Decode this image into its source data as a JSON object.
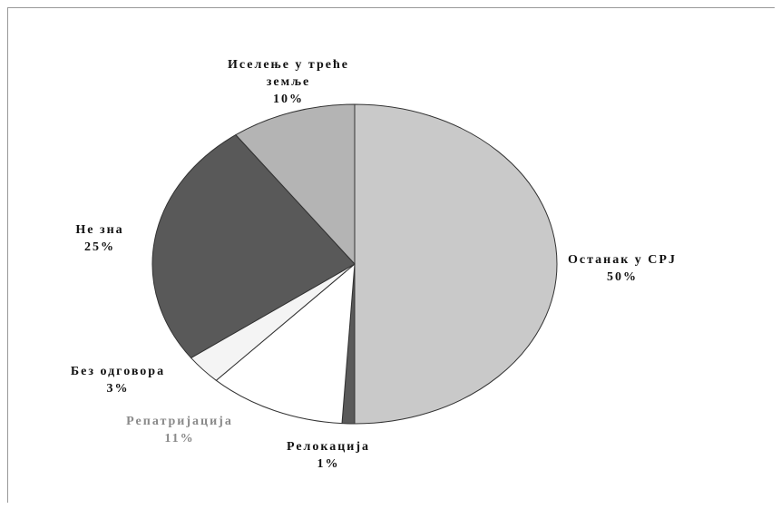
{
  "chart_data": {
    "type": "pie",
    "categories": [
      "Останак у СРЈ",
      "Релокација",
      "Репатријација",
      "Без одговора",
      "Не зна",
      "Иселење у треће земље"
    ],
    "values": [
      50,
      1,
      11,
      3,
      25,
      10
    ],
    "value_labels": [
      "50%",
      "1%",
      "11%",
      "3%",
      "25%",
      "10%"
    ],
    "colors": [
      "#c9c9c9",
      "#5a5a5a",
      "#ffffff",
      "#f4f4f4",
      "#595959",
      "#b4b4b4"
    ],
    "label_colors": [
      "#111111",
      "#111111",
      "#8a8a8a",
      "#111111",
      "#111111",
      "#111111"
    ]
  }
}
